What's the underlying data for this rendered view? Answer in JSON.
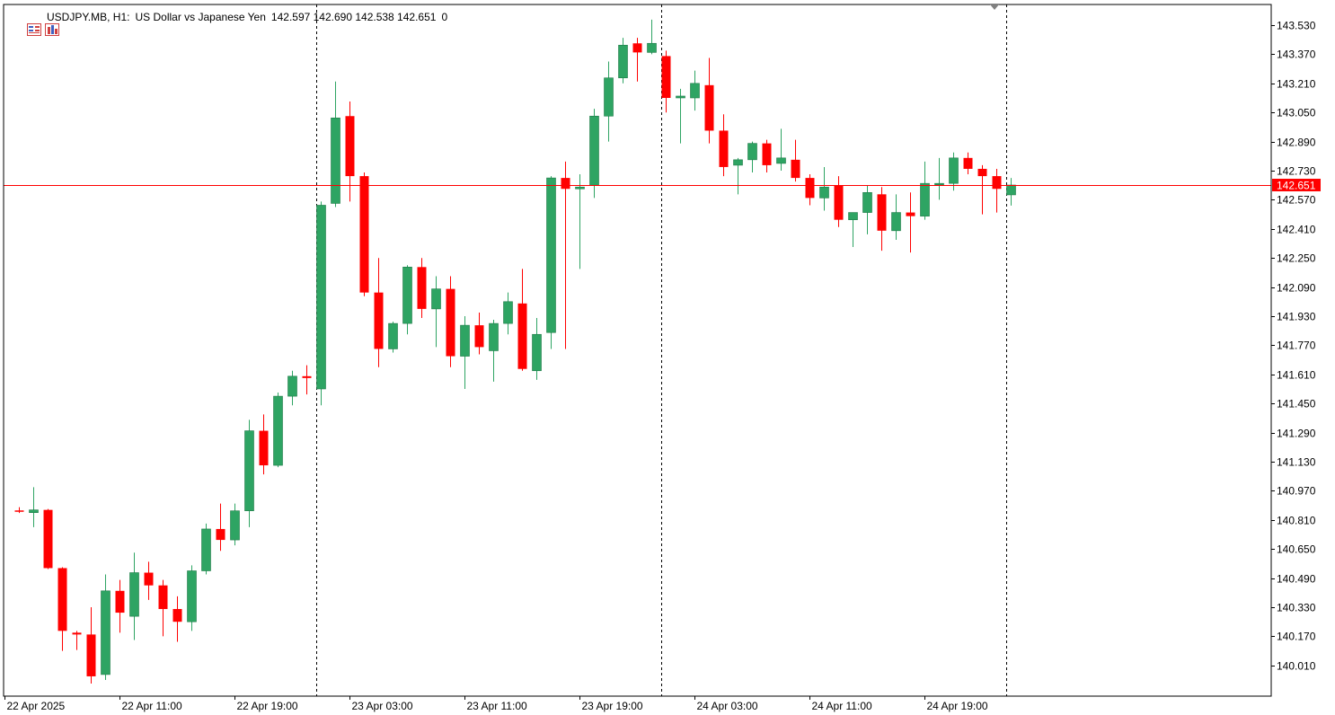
{
  "header": {
    "symbol": "USDJPY.MB, H1:",
    "description": "US Dollar vs Japanese Yen",
    "ohlc": "142.597 142.690 142.538 142.651",
    "volume": "0"
  },
  "colors": {
    "bull": "#2ea463",
    "bear": "#ff0000",
    "wick_bull": "#2ea463",
    "wick_bear": "#ff0000",
    "price_line": "#ff0000",
    "axis": "#000000",
    "separator": "#000000"
  },
  "icons": [
    "window-list-icon",
    "chart-config-icon"
  ],
  "current_price_label": "142.651",
  "chart_data": {
    "type": "candlestick",
    "title": "USDJPY.MB, H1",
    "y_ticks": [
      "143.530",
      "143.370",
      "143.210",
      "143.050",
      "142.890",
      "142.730",
      "142.570",
      "142.410",
      "142.250",
      "142.090",
      "141.930",
      "141.770",
      "141.610",
      "141.450",
      "141.290",
      "141.130",
      "140.970",
      "140.810",
      "140.650",
      "140.490",
      "140.330",
      "140.170",
      "140.010"
    ],
    "y_tick_values": [
      143.53,
      143.37,
      143.21,
      143.05,
      142.89,
      142.73,
      142.57,
      142.41,
      142.25,
      142.09,
      141.93,
      141.77,
      141.61,
      141.45,
      141.29,
      141.13,
      140.97,
      140.81,
      140.65,
      140.49,
      140.33,
      140.17,
      140.01
    ],
    "ylim": [
      139.89,
      143.63
    ],
    "x_ticks": [
      {
        "label": "22 Apr 2025",
        "index": 0
      },
      {
        "label": "22 Apr 11:00",
        "index": 8
      },
      {
        "label": "22 Apr 19:00",
        "index": 16
      },
      {
        "label": "23 Apr 03:00",
        "index": 24
      },
      {
        "label": "23 Apr 11:00",
        "index": 32
      },
      {
        "label": "23 Apr 19:00",
        "index": 40
      },
      {
        "label": "24 Apr 03:00",
        "index": 48
      },
      {
        "label": "24 Apr 11:00",
        "index": 56
      },
      {
        "label": "24 Apr 19:00",
        "index": 64
      }
    ],
    "day_separators": [
      21,
      45,
      69
    ],
    "current_price": 142.651,
    "candles": [
      {
        "o": 140.862,
        "h": 140.88,
        "l": 140.848,
        "c": 140.855
      },
      {
        "o": 140.85,
        "h": 140.99,
        "l": 140.77,
        "c": 140.865
      },
      {
        "o": 140.865,
        "h": 140.87,
        "l": 140.54,
        "c": 140.545
      },
      {
        "o": 140.545,
        "h": 140.55,
        "l": 140.09,
        "c": 140.2
      },
      {
        "o": 140.19,
        "h": 140.2,
        "l": 140.095,
        "c": 140.18
      },
      {
        "o": 140.18,
        "h": 140.33,
        "l": 139.91,
        "c": 139.95
      },
      {
        "o": 139.96,
        "h": 140.51,
        "l": 139.93,
        "c": 140.42
      },
      {
        "o": 140.42,
        "h": 140.48,
        "l": 140.19,
        "c": 140.3
      },
      {
        "o": 140.28,
        "h": 140.63,
        "l": 140.15,
        "c": 140.52
      },
      {
        "o": 140.52,
        "h": 140.58,
        "l": 140.37,
        "c": 140.45
      },
      {
        "o": 140.45,
        "h": 140.48,
        "l": 140.17,
        "c": 140.32
      },
      {
        "o": 140.32,
        "h": 140.39,
        "l": 140.14,
        "c": 140.25
      },
      {
        "o": 140.25,
        "h": 140.56,
        "l": 140.2,
        "c": 140.53
      },
      {
        "o": 140.53,
        "h": 140.79,
        "l": 140.51,
        "c": 140.76
      },
      {
        "o": 140.76,
        "h": 140.9,
        "l": 140.64,
        "c": 140.7
      },
      {
        "o": 140.7,
        "h": 140.9,
        "l": 140.67,
        "c": 140.86
      },
      {
        "o": 140.86,
        "h": 141.36,
        "l": 140.77,
        "c": 141.3
      },
      {
        "o": 141.3,
        "h": 141.39,
        "l": 141.06,
        "c": 141.11
      },
      {
        "o": 141.11,
        "h": 141.51,
        "l": 141.1,
        "c": 141.49
      },
      {
        "o": 141.49,
        "h": 141.63,
        "l": 141.44,
        "c": 141.6
      },
      {
        "o": 141.6,
        "h": 141.66,
        "l": 141.5,
        "c": 141.59
      },
      {
        "o": 141.53,
        "h": 142.56,
        "l": 141.44,
        "c": 142.54
      },
      {
        "o": 142.55,
        "h": 143.22,
        "l": 142.53,
        "c": 143.02
      },
      {
        "o": 143.03,
        "h": 143.11,
        "l": 142.56,
        "c": 142.7
      },
      {
        "o": 142.7,
        "h": 142.72,
        "l": 142.04,
        "c": 142.06
      },
      {
        "o": 142.06,
        "h": 142.25,
        "l": 141.65,
        "c": 141.75
      },
      {
        "o": 141.75,
        "h": 141.9,
        "l": 141.73,
        "c": 141.89
      },
      {
        "o": 141.89,
        "h": 142.21,
        "l": 141.83,
        "c": 142.2
      },
      {
        "o": 142.2,
        "h": 142.25,
        "l": 141.92,
        "c": 141.97
      },
      {
        "o": 141.97,
        "h": 142.15,
        "l": 141.76,
        "c": 142.08
      },
      {
        "o": 142.08,
        "h": 142.15,
        "l": 141.65,
        "c": 141.71
      },
      {
        "o": 141.71,
        "h": 141.93,
        "l": 141.53,
        "c": 141.88
      },
      {
        "o": 141.88,
        "h": 141.95,
        "l": 141.72,
        "c": 141.76
      },
      {
        "o": 141.74,
        "h": 141.91,
        "l": 141.57,
        "c": 141.89
      },
      {
        "o": 141.89,
        "h": 142.06,
        "l": 141.83,
        "c": 142.01
      },
      {
        "o": 142.0,
        "h": 142.19,
        "l": 141.63,
        "c": 141.64
      },
      {
        "o": 141.63,
        "h": 141.92,
        "l": 141.58,
        "c": 141.83
      },
      {
        "o": 141.84,
        "h": 142.7,
        "l": 141.75,
        "c": 142.69
      },
      {
        "o": 142.69,
        "h": 142.78,
        "l": 141.75,
        "c": 142.63
      },
      {
        "o": 142.63,
        "h": 142.71,
        "l": 142.19,
        "c": 142.64
      },
      {
        "o": 142.65,
        "h": 143.07,
        "l": 142.58,
        "c": 143.03
      },
      {
        "o": 143.03,
        "h": 143.33,
        "l": 142.89,
        "c": 143.24
      },
      {
        "o": 143.24,
        "h": 143.46,
        "l": 143.21,
        "c": 143.42
      },
      {
        "o": 143.43,
        "h": 143.46,
        "l": 143.22,
        "c": 143.38
      },
      {
        "o": 143.38,
        "h": 143.56,
        "l": 143.37,
        "c": 143.43
      },
      {
        "o": 143.36,
        "h": 143.39,
        "l": 143.05,
        "c": 143.13
      },
      {
        "o": 143.13,
        "h": 143.18,
        "l": 142.88,
        "c": 143.14
      },
      {
        "o": 143.13,
        "h": 143.28,
        "l": 143.06,
        "c": 143.21
      },
      {
        "o": 143.2,
        "h": 143.35,
        "l": 142.88,
        "c": 142.95
      },
      {
        "o": 142.95,
        "h": 143.04,
        "l": 142.7,
        "c": 142.75
      },
      {
        "o": 142.76,
        "h": 142.8,
        "l": 142.6,
        "c": 142.79
      },
      {
        "o": 142.79,
        "h": 142.89,
        "l": 142.72,
        "c": 142.88
      },
      {
        "o": 142.88,
        "h": 142.9,
        "l": 142.72,
        "c": 142.76
      },
      {
        "o": 142.77,
        "h": 142.96,
        "l": 142.73,
        "c": 142.8
      },
      {
        "o": 142.79,
        "h": 142.9,
        "l": 142.67,
        "c": 142.69
      },
      {
        "o": 142.69,
        "h": 142.71,
        "l": 142.54,
        "c": 142.58
      },
      {
        "o": 142.58,
        "h": 142.75,
        "l": 142.51,
        "c": 142.64
      },
      {
        "o": 142.65,
        "h": 142.7,
        "l": 142.42,
        "c": 142.46
      },
      {
        "o": 142.46,
        "h": 142.5,
        "l": 142.31,
        "c": 142.5
      },
      {
        "o": 142.5,
        "h": 142.65,
        "l": 142.38,
        "c": 142.61
      },
      {
        "o": 142.6,
        "h": 142.64,
        "l": 142.29,
        "c": 142.4
      },
      {
        "o": 142.4,
        "h": 142.6,
        "l": 142.35,
        "c": 142.5
      },
      {
        "o": 142.5,
        "h": 142.61,
        "l": 142.28,
        "c": 142.48
      },
      {
        "o": 142.48,
        "h": 142.78,
        "l": 142.46,
        "c": 142.66
      },
      {
        "o": 142.66,
        "h": 142.8,
        "l": 142.57,
        "c": 142.66
      },
      {
        "o": 142.66,
        "h": 142.83,
        "l": 142.62,
        "c": 142.8
      },
      {
        "o": 142.8,
        "h": 142.83,
        "l": 142.71,
        "c": 142.74
      },
      {
        "o": 142.74,
        "h": 142.76,
        "l": 142.49,
        "c": 142.7
      },
      {
        "o": 142.7,
        "h": 142.74,
        "l": 142.5,
        "c": 142.63
      },
      {
        "o": 142.597,
        "h": 142.69,
        "l": 142.538,
        "c": 142.651
      }
    ]
  }
}
